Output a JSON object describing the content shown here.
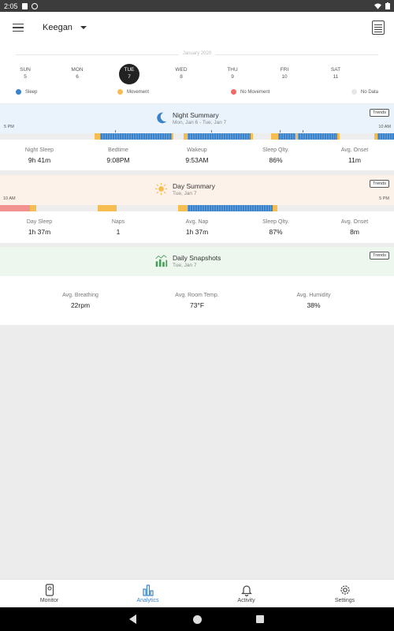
{
  "status_bar": {
    "time": "2:05"
  },
  "app_bar": {
    "profile_name": "Keegan"
  },
  "week": {
    "month_label": "January 2020",
    "days": [
      {
        "name": "SUN",
        "num": "5"
      },
      {
        "name": "MON",
        "num": "6"
      },
      {
        "name": "TUE",
        "num": "7",
        "selected": true
      },
      {
        "name": "WED",
        "num": "8"
      },
      {
        "name": "THU",
        "num": "9"
      },
      {
        "name": "FRI",
        "num": "10"
      },
      {
        "name": "SAT",
        "num": "11"
      }
    ]
  },
  "legend": [
    {
      "label": "Sleep",
      "color": "#3a82c9"
    },
    {
      "label": "Movement",
      "color": "#f6bd51"
    },
    {
      "label": "No Movement",
      "color": "#f06a6a"
    },
    {
      "label": "No Data",
      "color": "#e6e6e6"
    }
  ],
  "night_summary": {
    "title": "Night Summary",
    "subtitle": "Mon, Jan 6 - Tue, Jan 7",
    "trends_label": "Trends",
    "start_label": "5 PM",
    "end_label": "10 AM",
    "stats": [
      {
        "label": "Night Sleep",
        "value": "9h 41m"
      },
      {
        "label": "Bedtime",
        "value": "9:08PM"
      },
      {
        "label": "Wakeup",
        "value": "9:53AM"
      },
      {
        "label": "Sleep Qlty.",
        "value": "86%"
      },
      {
        "label": "Avg. Onset",
        "value": "11m"
      }
    ]
  },
  "day_summary": {
    "title": "Day Summary",
    "subtitle": "Tue, Jan 7",
    "trends_label": "Trends",
    "start_label": "10 AM",
    "end_label": "5 PM",
    "stats": [
      {
        "label": "Day Sleep",
        "value": "1h 37m"
      },
      {
        "label": "Naps",
        "value": "1"
      },
      {
        "label": "Avg. Nap",
        "value": "1h 37m"
      },
      {
        "label": "Sleep Qlty.",
        "value": "87%"
      },
      {
        "label": "Avg. Onset",
        "value": "8m"
      }
    ]
  },
  "daily_snapshots": {
    "title": "Daily Snapshots",
    "subtitle": "Tue, Jan 7",
    "trends_label": "Trends",
    "stats": [
      {
        "label": "Avg. Breathing",
        "value": "22rpm"
      },
      {
        "label": "Avg. Room Temp.",
        "value": "73°F"
      },
      {
        "label": "Avg. Humidity",
        "value": "38%"
      }
    ]
  },
  "bottom_nav": [
    {
      "label": "Monitor",
      "icon": "monitor-icon"
    },
    {
      "label": "Analytics",
      "icon": "analytics-icon",
      "active": true
    },
    {
      "label": "Activity",
      "icon": "bell-icon"
    },
    {
      "label": "Settings",
      "icon": "gear-icon"
    }
  ]
}
